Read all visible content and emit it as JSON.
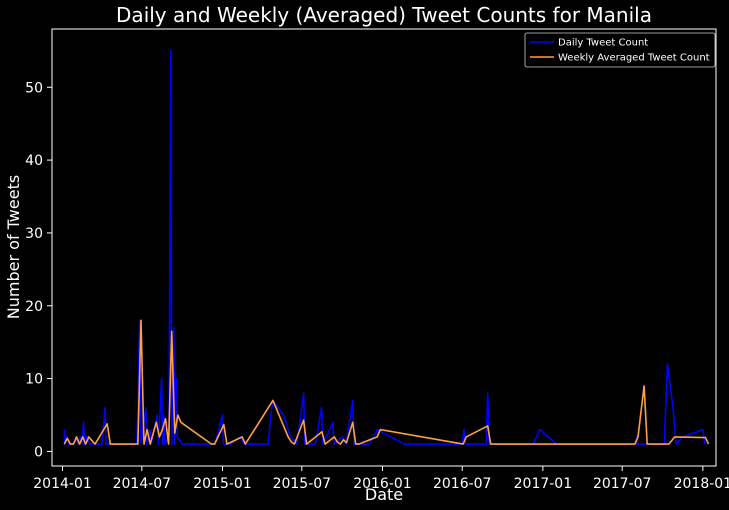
{
  "chart_data": {
    "type": "line",
    "title": "Daily and Weekly (Averaged) Tweet Counts for Manila",
    "xlabel": "Date",
    "ylabel": "Number of Tweets",
    "x_ticks": [
      "2014-01",
      "2014-07",
      "2015-01",
      "2015-07",
      "2016-01",
      "2016-07",
      "2017-01",
      "2017-07",
      "2018-01"
    ],
    "y_ticks": [
      0,
      10,
      20,
      30,
      40,
      50
    ],
    "xlim": [
      "2013-12-08",
      "2018-01-31"
    ],
    "ylim": [
      -2,
      58
    ],
    "grid": false,
    "legend_position": "top-right",
    "colors": {
      "background": "#000000",
      "axes": "#ffffff",
      "daily": "#0000ff",
      "weekly": "#ffa040"
    },
    "series": [
      {
        "name": "Daily Tweet Count",
        "color": "#0000ff",
        "points": [
          [
            "2014-01-05",
            3
          ],
          [
            "2014-01-06",
            1
          ],
          [
            "2014-01-10",
            2
          ],
          [
            "2014-01-15",
            1
          ],
          [
            "2014-01-25",
            1
          ],
          [
            "2014-02-02",
            2
          ],
          [
            "2014-02-05",
            1
          ],
          [
            "2014-02-10",
            2
          ],
          [
            "2014-02-14",
            1
          ],
          [
            "2014-02-18",
            4
          ],
          [
            "2014-02-20",
            1
          ],
          [
            "2014-02-25",
            2
          ],
          [
            "2014-03-05",
            1
          ],
          [
            "2014-03-20",
            1
          ],
          [
            "2014-04-01",
            1
          ],
          [
            "2014-04-08",
            6
          ],
          [
            "2014-04-10",
            1
          ],
          [
            "2014-05-01",
            1
          ],
          [
            "2014-06-01",
            1
          ],
          [
            "2014-06-20",
            1
          ],
          [
            "2014-06-26",
            18
          ],
          [
            "2014-06-29",
            1
          ],
          [
            "2014-07-10",
            6
          ],
          [
            "2014-07-12",
            1
          ],
          [
            "2014-07-20",
            3
          ],
          [
            "2014-07-22",
            1
          ],
          [
            "2014-08-05",
            5
          ],
          [
            "2014-08-08",
            1
          ],
          [
            "2014-08-15",
            10
          ],
          [
            "2014-08-17",
            1
          ],
          [
            "2014-08-20",
            5
          ],
          [
            "2014-08-22",
            1
          ],
          [
            "2014-09-01",
            2
          ],
          [
            "2014-09-05",
            55
          ],
          [
            "2014-09-07",
            1
          ],
          [
            "2014-09-12",
            17
          ],
          [
            "2014-09-14",
            1
          ],
          [
            "2014-09-18",
            10
          ],
          [
            "2014-09-20",
            2
          ],
          [
            "2014-10-01",
            1
          ],
          [
            "2014-11-01",
            1
          ],
          [
            "2014-12-15",
            1
          ],
          [
            "2015-01-01",
            5
          ],
          [
            "2015-01-03",
            1
          ],
          [
            "2015-01-20",
            1
          ],
          [
            "2015-02-10",
            2
          ],
          [
            "2015-02-20",
            1
          ],
          [
            "2015-04-15",
            1
          ],
          [
            "2015-04-25",
            7
          ],
          [
            "2015-05-20",
            5
          ],
          [
            "2015-06-05",
            2
          ],
          [
            "2015-06-20",
            1
          ],
          [
            "2015-07-05",
            8
          ],
          [
            "2015-07-08",
            1
          ],
          [
            "2015-08-01",
            1
          ],
          [
            "2015-08-15",
            6
          ],
          [
            "2015-08-18",
            1
          ],
          [
            "2015-09-10",
            4
          ],
          [
            "2015-09-12",
            1
          ],
          [
            "2015-10-01",
            2
          ],
          [
            "2015-10-10",
            1
          ],
          [
            "2015-10-25",
            7
          ],
          [
            "2015-10-28",
            1
          ],
          [
            "2015-12-01",
            1
          ],
          [
            "2015-12-20",
            3
          ],
          [
            "2016-01-20",
            2
          ],
          [
            "2016-02-20",
            1
          ],
          [
            "2016-07-01",
            1
          ],
          [
            "2016-07-05",
            3
          ],
          [
            "2016-07-08",
            1
          ],
          [
            "2016-08-25",
            1
          ],
          [
            "2016-08-28",
            8
          ],
          [
            "2016-09-01",
            1
          ],
          [
            "2016-12-10",
            1
          ],
          [
            "2016-12-25",
            3
          ],
          [
            "2017-02-01",
            1
          ],
          [
            "2017-08-01",
            1
          ],
          [
            "2017-08-03",
            2
          ],
          [
            "2017-08-05",
            1
          ],
          [
            "2017-09-01",
            1
          ],
          [
            "2017-10-05",
            1
          ],
          [
            "2017-10-12",
            12
          ],
          [
            "2017-10-25",
            6
          ],
          [
            "2017-11-01",
            1
          ],
          [
            "2017-11-15",
            2
          ],
          [
            "2018-01-01",
            3
          ],
          [
            "2018-01-05",
            1
          ]
        ]
      },
      {
        "name": "Weekly Averaged Tweet Count",
        "color": "#ffa040",
        "points": [
          [
            "2014-01-05",
            1
          ],
          [
            "2014-01-12",
            1.8
          ],
          [
            "2014-01-19",
            1
          ],
          [
            "2014-01-26",
            1
          ],
          [
            "2014-02-02",
            2
          ],
          [
            "2014-02-09",
            1
          ],
          [
            "2014-02-16",
            2
          ],
          [
            "2014-02-23",
            1
          ],
          [
            "2014-03-02",
            2
          ],
          [
            "2014-03-09",
            1.5
          ],
          [
            "2014-03-16",
            1
          ],
          [
            "2014-04-13",
            3.8
          ],
          [
            "2014-04-20",
            1
          ],
          [
            "2014-06-22",
            1
          ],
          [
            "2014-06-29",
            18
          ],
          [
            "2014-07-06",
            1
          ],
          [
            "2014-07-13",
            3
          ],
          [
            "2014-07-20",
            1
          ],
          [
            "2014-08-03",
            4
          ],
          [
            "2014-08-10",
            2
          ],
          [
            "2014-08-17",
            3
          ],
          [
            "2014-08-24",
            4.5
          ],
          [
            "2014-08-31",
            1
          ],
          [
            "2014-09-07",
            16.5
          ],
          [
            "2014-09-14",
            2.5
          ],
          [
            "2014-09-21",
            5
          ],
          [
            "2014-09-28",
            4
          ],
          [
            "2014-12-07",
            1
          ],
          [
            "2014-12-14",
            1
          ],
          [
            "2015-01-04",
            3.7
          ],
          [
            "2015-01-11",
            1
          ],
          [
            "2015-02-15",
            2
          ],
          [
            "2015-02-22",
            1
          ],
          [
            "2015-04-26",
            7
          ],
          [
            "2015-05-03",
            6
          ],
          [
            "2015-05-31",
            2
          ],
          [
            "2015-06-07",
            1.3
          ],
          [
            "2015-06-14",
            1
          ],
          [
            "2015-07-05",
            4.3
          ],
          [
            "2015-07-12",
            1
          ],
          [
            "2015-08-16",
            2.7
          ],
          [
            "2015-08-23",
            1
          ],
          [
            "2015-09-13",
            2
          ],
          [
            "2015-09-20",
            1.3
          ],
          [
            "2015-09-27",
            1
          ],
          [
            "2015-10-04",
            1.6
          ],
          [
            "2015-10-11",
            1.2
          ],
          [
            "2015-10-25",
            4
          ],
          [
            "2015-11-01",
            1
          ],
          [
            "2015-11-08",
            1
          ],
          [
            "2015-12-20",
            2
          ],
          [
            "2015-12-27",
            3
          ],
          [
            "2016-07-03",
            1
          ],
          [
            "2016-07-10",
            2
          ],
          [
            "2016-08-28",
            3.5
          ],
          [
            "2016-09-04",
            1
          ],
          [
            "2017-07-30",
            1
          ],
          [
            "2017-08-06",
            2
          ],
          [
            "2017-08-20",
            9
          ],
          [
            "2017-08-27",
            1
          ],
          [
            "2017-09-03",
            1
          ],
          [
            "2017-10-15",
            1
          ],
          [
            "2017-10-29",
            2
          ],
          [
            "2018-01-07",
            1.9
          ],
          [
            "2018-01-14",
            1
          ]
        ]
      }
    ]
  }
}
